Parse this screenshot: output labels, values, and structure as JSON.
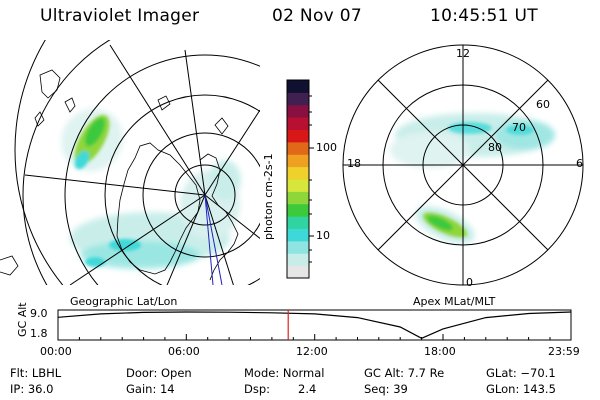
{
  "header": {
    "instrument": "Ultraviolet Imager",
    "date": "02 Nov 07",
    "time": "10:45:51 UT"
  },
  "colorbar": {
    "label": "photon cm-2s-1",
    "ticks": [
      "100",
      "10"
    ],
    "colors": [
      "#e6e6e6",
      "#c8ece8",
      "#8fe3e0",
      "#3fd8d8",
      "#2fd4a0",
      "#3cc93c",
      "#8fd63a",
      "#d6e63a",
      "#f0d02a",
      "#f0a020",
      "#e06818",
      "#d81818",
      "#b81030",
      "#881040",
      "#402050",
      "#101030"
    ]
  },
  "left_map": {
    "label": "Geographic Lat/Lon"
  },
  "right_map": {
    "label": "Apex  MLat/MLT",
    "mlt_labels": {
      "top": "12",
      "left": "18",
      "right": "6",
      "bottom": "0"
    },
    "lat_labels": [
      "60",
      "70",
      "80"
    ]
  },
  "timeline": {
    "ylabel": "GC Alt",
    "yticks": [
      "9.0",
      "1.8"
    ],
    "xticks": [
      "00:00",
      "06:00",
      "12:00",
      "18:00",
      "23:59"
    ]
  },
  "status": {
    "flt": "Flt: LBHL",
    "ip": "IP: 36.0",
    "door": "Door: Open",
    "gain": "Gain: 14",
    "mode": "Mode: Normal",
    "dsp_label": "Dsp:",
    "dsp_value": "2.4",
    "gcalt": "GC Alt: 7.7 Re",
    "seq": "Seq: 39",
    "glat": "GLat: −70.1",
    "glon": "GLon: 143.5"
  },
  "chart_data": {
    "type": "line",
    "title": "",
    "xlabel": "",
    "ylabel": "GC Alt",
    "x": [
      "00:00",
      "02:00",
      "04:00",
      "06:00",
      "08:00",
      "10:00",
      "12:00",
      "14:00",
      "16:00",
      "17:00",
      "18:00",
      "20:00",
      "22:00",
      "23:59"
    ],
    "series": [
      {
        "values": [
          7.6,
          8.5,
          8.9,
          9.0,
          8.95,
          8.8,
          8.5,
          7.5,
          5.0,
          2.0,
          4.5,
          7.5,
          8.6,
          9.0
        ]
      }
    ],
    "ylim": [
      1.8,
      9.0
    ],
    "current_time": "10:45:51",
    "current_marker_color": "#e02020"
  }
}
